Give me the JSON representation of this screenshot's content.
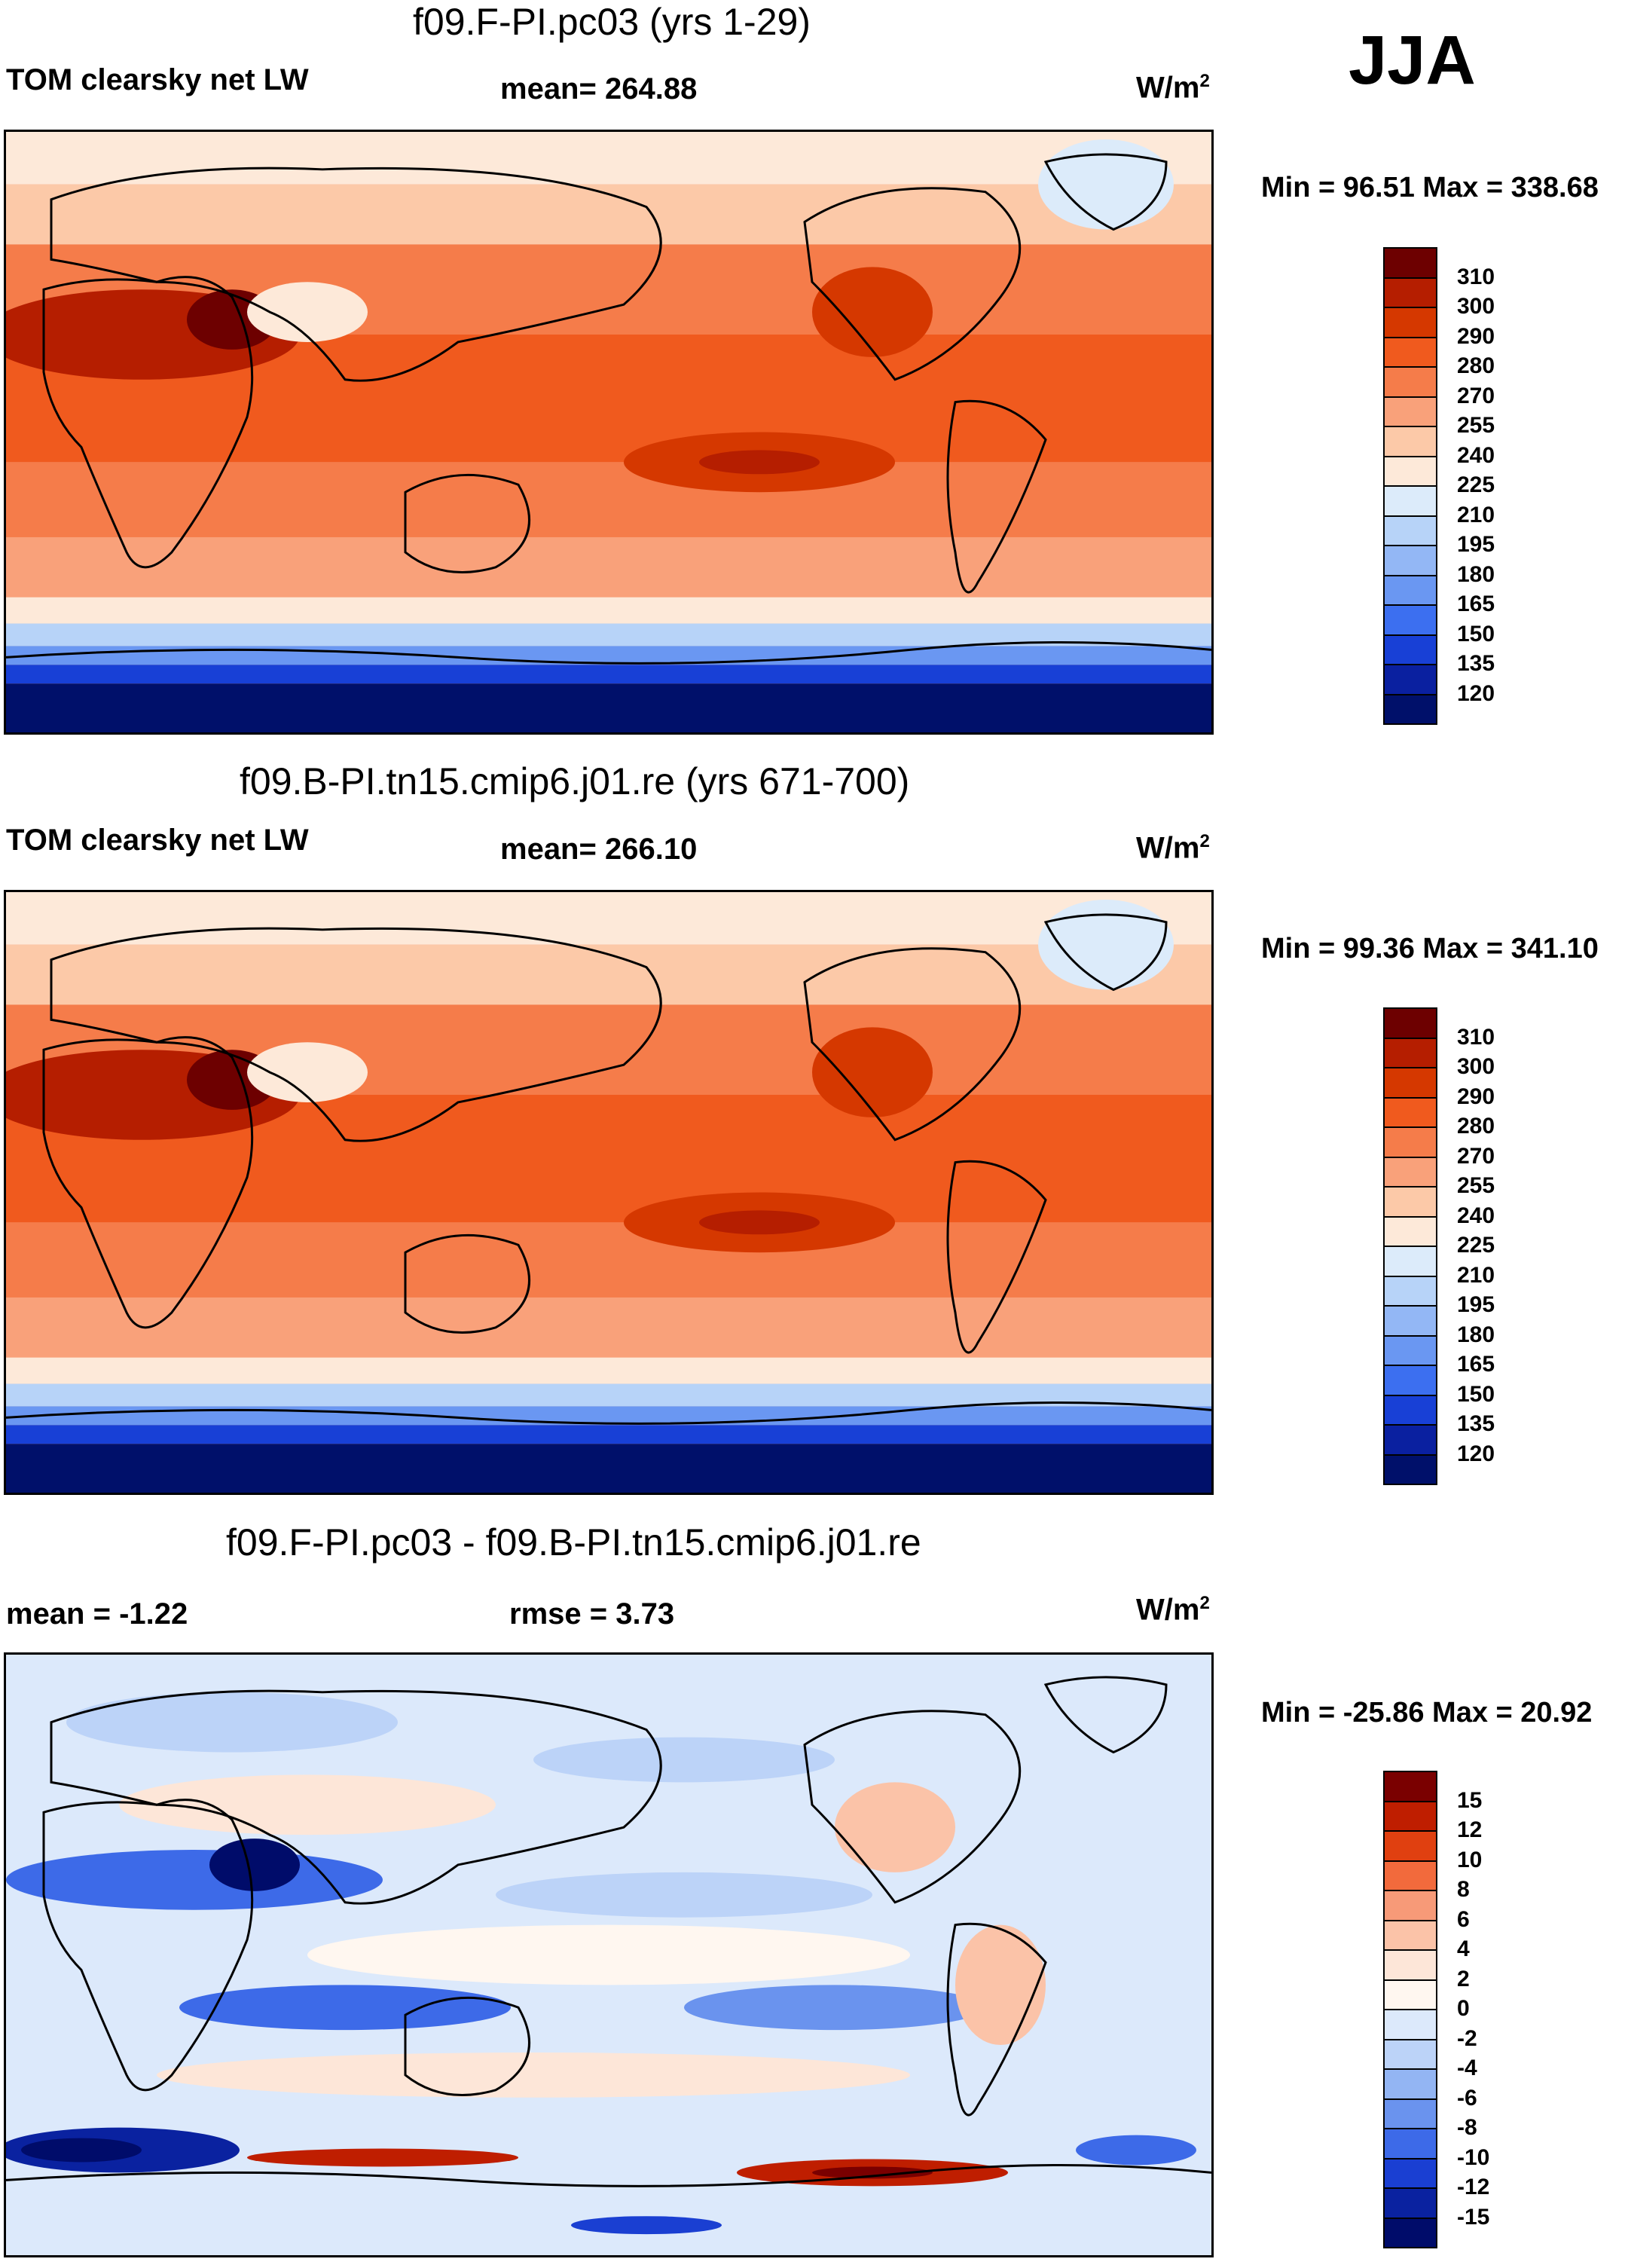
{
  "season": "JJA",
  "units": "W/m",
  "units_sup": "2",
  "panels": [
    {
      "title": "f09.F-PI.pc03 (yrs 1-29)",
      "left_label": "TOM clearsky net LW",
      "center_label": "mean= 264.88",
      "minmax": "Min =  96.51 Max = 338.68",
      "map_description": "field-map-panel-1",
      "colorbar_levels": [
        "310",
        "300",
        "290",
        "280",
        "270",
        "255",
        "240",
        "225",
        "210",
        "195",
        "180",
        "165",
        "150",
        "135",
        "120"
      ],
      "colorbar_colors": [
        "#6d0000",
        "#b51e00",
        "#d53800",
        "#f05a1e",
        "#f57c4a",
        "#f9a17a",
        "#fcc9a8",
        "#fde9d9",
        "#dcebfa",
        "#b7d3f8",
        "#93b7f5",
        "#6a97f2",
        "#3c6ff0",
        "#1840d6",
        "#0a20a0",
        "#00106a"
      ]
    },
    {
      "title": "f09.B-PI.tn15.cmip6.j01.re (yrs 671-700)",
      "left_label": "TOM clearsky net LW",
      "center_label": "mean= 266.10",
      "minmax": "Min =  99.36 Max = 341.10",
      "map_description": "field-map-panel-2",
      "colorbar_levels": [
        "310",
        "300",
        "290",
        "280",
        "270",
        "255",
        "240",
        "225",
        "210",
        "195",
        "180",
        "165",
        "150",
        "135",
        "120"
      ],
      "colorbar_colors": [
        "#6d0000",
        "#b51e00",
        "#d53800",
        "#f05a1e",
        "#f57c4a",
        "#f9a17a",
        "#fcc9a8",
        "#fde9d9",
        "#dcebfa",
        "#b7d3f8",
        "#93b7f5",
        "#6a97f2",
        "#3c6ff0",
        "#1840d6",
        "#0a20a0",
        "#00106a"
      ]
    },
    {
      "title": "f09.F-PI.pc03 - f09.B-PI.tn15.cmip6.j01.re",
      "left_label": "mean =  -1.22",
      "center_label": "rmse =   3.73",
      "minmax": "Min = -25.86 Max =  20.92",
      "map_description": "difference-map-panel-3",
      "colorbar_levels": [
        "15",
        "12",
        "10",
        "8",
        "6",
        "4",
        "2",
        "0",
        "-2",
        "-4",
        "-6",
        "-8",
        "-10",
        "-12",
        "-15"
      ],
      "colorbar_colors": [
        "#7a0000",
        "#bf1e00",
        "#e04010",
        "#f26a3c",
        "#f79a78",
        "#fbc3a8",
        "#fde6d8",
        "#fff7f0",
        "#dce9fb",
        "#bcd3f8",
        "#93b5f3",
        "#6a93ee",
        "#3d6ae8",
        "#1a3fd2",
        "#0a22a0",
        "#000c6a"
      ]
    }
  ]
}
